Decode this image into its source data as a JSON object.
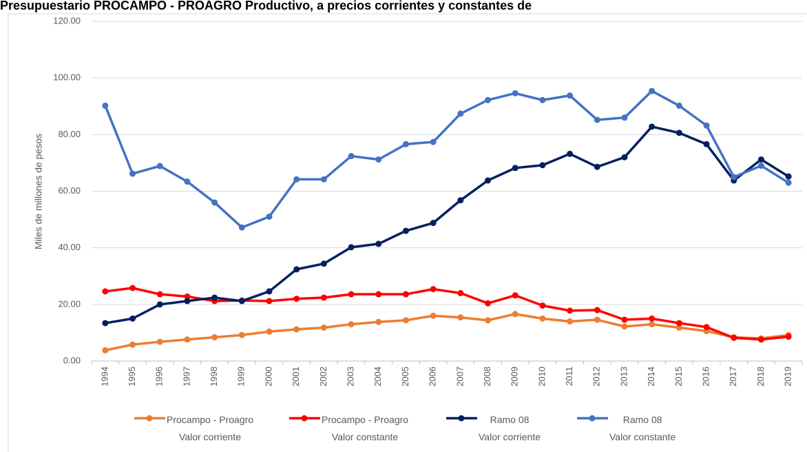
{
  "chart_data": {
    "type": "line",
    "title": "Presupuestario PROCAMPO - PROAGRO Productivo, a precios corrientes y constantes de",
    "y_label": "Miles de millones de pesos",
    "categories": [
      "1994",
      "1995",
      "1996",
      "1997",
      "1998",
      "1999",
      "2000",
      "2001",
      "2002",
      "2003",
      "2004",
      "2005",
      "2006",
      "2007",
      "2008",
      "2009",
      "2010",
      "2011",
      "2012",
      "2013",
      "2014",
      "2015",
      "2016",
      "2017",
      "2018",
      "2019"
    ],
    "series": [
      {
        "name": "Procampo - Proagro\nValor corriente",
        "color": "#ed7d31",
        "values": [
          3.8,
          5.8,
          6.8,
          7.6,
          8.4,
          9.2,
          10.4,
          11.2,
          11.8,
          13.0,
          13.8,
          14.4,
          16.0,
          15.4,
          14.4,
          16.6,
          15.0,
          14.0,
          14.6,
          12.2,
          13.0,
          11.8,
          10.6,
          8.4,
          8.0,
          9.2
        ]
      },
      {
        "name": "Procampo - Proagro\nValor constante",
        "color": "#ff0000",
        "values": [
          24.6,
          25.8,
          23.6,
          22.8,
          21.2,
          21.4,
          21.2,
          22.0,
          22.4,
          23.6,
          23.6,
          23.6,
          25.4,
          24.0,
          20.4,
          23.2,
          19.6,
          17.8,
          18.0,
          14.6,
          15.0,
          13.4,
          12.0,
          8.2,
          7.6,
          8.6
        ]
      },
      {
        "name": "Ramo 08\nValor corriente",
        "color": "#002060",
        "values": [
          13.4,
          15.0,
          20.0,
          21.2,
          22.4,
          21.2,
          24.6,
          32.4,
          34.4,
          40.2,
          41.4,
          46.0,
          48.8,
          56.8,
          63.8,
          68.2,
          69.2,
          73.2,
          68.6,
          72.0,
          82.8,
          80.6,
          76.6,
          63.8,
          71.2,
          65.2
        ]
      },
      {
        "name": "Ramo 08\nValor constante",
        "color": "#4472c4",
        "values": [
          90.2,
          66.2,
          68.9,
          63.4,
          56.0,
          47.2,
          51.0,
          64.2,
          64.2,
          72.4,
          71.2,
          76.6,
          77.4,
          87.4,
          92.2,
          94.6,
          92.2,
          93.8,
          85.2,
          86.0,
          95.4,
          90.2,
          83.2,
          65.0,
          69.0,
          63.0
        ]
      }
    ],
    "ylim": [
      0,
      120
    ],
    "yticks": [
      {
        "value": 0,
        "label": "0.00"
      },
      {
        "value": 20,
        "label": "20.00"
      },
      {
        "value": 40,
        "label": "40.00"
      },
      {
        "value": 60,
        "label": "60.00"
      },
      {
        "value": 80,
        "label": "80.00"
      },
      {
        "value": 100,
        "label": "100.00"
      },
      {
        "value": 120,
        "label": "120.00"
      }
    ],
    "grid": true,
    "legend": "bottom"
  }
}
